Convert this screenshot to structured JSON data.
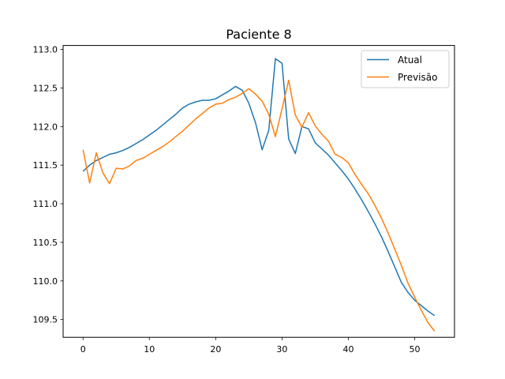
{
  "chart_data": {
    "type": "line",
    "title": "Paciente 8",
    "xlabel": "",
    "ylabel": "",
    "xlim": [
      -3,
      56
    ],
    "ylim": [
      109.27,
      113.05
    ],
    "xticks": [
      0,
      10,
      20,
      30,
      40,
      50
    ],
    "yticks": [
      109.5,
      110.0,
      110.5,
      111.0,
      111.5,
      112.0,
      112.5,
      113.0
    ],
    "ytick_labels": [
      "109.5",
      "110.0",
      "110.5",
      "111.0",
      "111.5",
      "112.0",
      "112.5",
      "113.0"
    ],
    "grid": false,
    "legend_position": "top-right",
    "x": [
      0,
      1,
      2,
      3,
      4,
      5,
      6,
      7,
      8,
      9,
      10,
      11,
      12,
      13,
      14,
      15,
      16,
      17,
      18,
      19,
      20,
      21,
      22,
      23,
      24,
      25,
      26,
      27,
      28,
      29,
      30,
      31,
      32,
      33,
      34,
      35,
      36,
      37,
      38,
      39,
      40,
      41,
      42,
      43,
      44,
      45,
      46,
      47,
      48,
      49,
      50,
      51,
      52,
      53
    ],
    "series": [
      {
        "name": "Atual",
        "color": "#1f77b4",
        "values": [
          111.42,
          111.5,
          111.56,
          111.6,
          111.64,
          111.66,
          111.69,
          111.73,
          111.78,
          111.83,
          111.89,
          111.95,
          112.02,
          112.09,
          112.16,
          112.24,
          112.29,
          112.32,
          112.34,
          112.34,
          112.36,
          112.41,
          112.46,
          112.52,
          112.47,
          112.3,
          112.05,
          111.7,
          111.95,
          112.88,
          112.82,
          111.84,
          111.65,
          112.0,
          111.97,
          111.79,
          111.71,
          111.63,
          111.53,
          111.43,
          111.32,
          111.19,
          111.05,
          110.9,
          110.74,
          110.57,
          110.38,
          110.18,
          109.98,
          109.85,
          109.75,
          109.68,
          109.61,
          109.55
        ]
      },
      {
        "name": "Previsão",
        "color": "#ff7f0e",
        "values": [
          111.7,
          111.27,
          111.66,
          111.4,
          111.26,
          111.46,
          111.45,
          111.49,
          111.56,
          111.59,
          111.64,
          111.69,
          111.74,
          111.8,
          111.87,
          111.94,
          112.02,
          112.1,
          112.17,
          112.24,
          112.29,
          112.3,
          112.35,
          112.38,
          112.43,
          112.49,
          112.42,
          112.33,
          112.16,
          111.87,
          112.23,
          112.6,
          112.15,
          111.99,
          112.18,
          112.01,
          111.9,
          111.81,
          111.64,
          111.6,
          111.53,
          111.38,
          111.25,
          111.13,
          110.98,
          110.81,
          110.62,
          110.41,
          110.2,
          109.97,
          109.79,
          109.62,
          109.46,
          109.35
        ]
      }
    ]
  }
}
